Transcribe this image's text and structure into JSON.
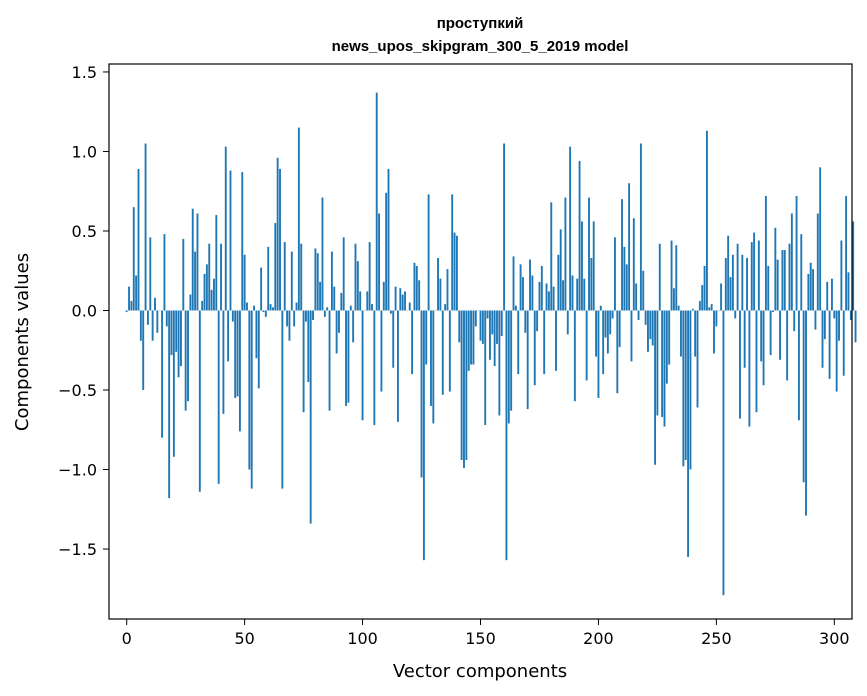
{
  "chart_data": {
    "type": "bar",
    "title": "проступкий",
    "subtitle": "news_upos_skipgram_300_5_2019 model",
    "xlabel": "Vector components",
    "ylabel": "Components values",
    "xlim": [
      -7.5,
      307.5
    ],
    "ylim": [
      -1.94,
      1.55
    ],
    "x_ticks": [
      0,
      50,
      100,
      150,
      200,
      250,
      300
    ],
    "x_tick_labels": [
      "0",
      "50",
      "100",
      "150",
      "200",
      "250",
      "300"
    ],
    "y_ticks": [
      -1.5,
      -1.0,
      -0.5,
      0.0,
      0.5,
      1.0,
      1.5
    ],
    "y_tick_labels": [
      "−1.5",
      "−1.0",
      "−0.5",
      "0.0",
      "0.5",
      "1.0",
      "1.5"
    ],
    "grid": false,
    "bar_color": "#1f77b4",
    "values": [
      -0.01,
      0.15,
      0.06,
      0.65,
      0.22,
      0.89,
      -0.19,
      -0.5,
      1.05,
      -0.09,
      0.46,
      -0.19,
      0.08,
      -0.14,
      0.0,
      -0.8,
      0.48,
      -0.1,
      -1.18,
      -0.28,
      -0.92,
      -0.26,
      -0.42,
      -0.35,
      0.45,
      -0.63,
      -0.57,
      0.1,
      0.64,
      0.37,
      0.61,
      -1.14,
      0.06,
      0.23,
      0.29,
      0.42,
      0.13,
      0.2,
      0.6,
      -1.09,
      0.42,
      -0.65,
      1.03,
      -0.32,
      0.88,
      -0.07,
      -0.55,
      -0.54,
      -0.76,
      0.87,
      0.35,
      0.05,
      -1.0,
      -1.12,
      0.03,
      -0.3,
      -0.49,
      0.27,
      -0.01,
      -0.04,
      0.4,
      0.04,
      0.02,
      0.55,
      0.96,
      0.89,
      -1.12,
      0.43,
      -0.1,
      -0.19,
      0.37,
      -0.1,
      0.05,
      1.15,
      0.42,
      -0.64,
      -0.07,
      -0.45,
      -1.34,
      -0.06,
      0.39,
      0.36,
      0.18,
      0.71,
      -0.04,
      0.02,
      -0.63,
      0.37,
      0.15,
      -0.27,
      -0.14,
      0.11,
      0.46,
      -0.6,
      -0.58,
      0.03,
      -0.2,
      0.42,
      0.31,
      0.12,
      -0.69,
      0.0,
      0.12,
      0.43,
      0.04,
      -0.72,
      1.37,
      0.61,
      -0.51,
      0.18,
      0.74,
      0.89,
      -0.02,
      -0.36,
      0.15,
      -0.7,
      0.14,
      0.1,
      0.12,
      0.0,
      0.05,
      -0.4,
      0.3,
      0.28,
      0.19,
      -1.05,
      -1.57,
      -0.34,
      0.73,
      -0.6,
      -0.71,
      0.0,
      0.33,
      0.2,
      -0.53,
      0.04,
      0.26,
      -0.51,
      0.73,
      0.49,
      0.47,
      -0.2,
      -0.94,
      -0.99,
      -0.94,
      -0.38,
      -0.34,
      -0.34,
      -0.1,
      0.0,
      -0.19,
      -0.21,
      -0.72,
      -0.05,
      -0.31,
      -0.15,
      -0.35,
      -0.21,
      -0.66,
      -0.16,
      1.05,
      -1.57,
      -0.71,
      -0.63,
      0.34,
      0.03,
      -0.4,
      0.29,
      0.21,
      -0.14,
      -0.62,
      0.32,
      0.22,
      -0.47,
      -0.13,
      0.18,
      0.28,
      -0.4,
      0.17,
      0.12,
      0.68,
      0.15,
      -0.38,
      0.35,
      0.51,
      0.19,
      0.71,
      -0.15,
      1.03,
      0.22,
      -0.57,
      0.2,
      0.94,
      0.56,
      0.2,
      -0.44,
      0.71,
      0.33,
      0.56,
      -0.29,
      -0.55,
      0.03,
      -0.4,
      -0.17,
      -0.27,
      -0.15,
      -0.05,
      0.46,
      -0.52,
      -0.23,
      0.7,
      0.4,
      0.29,
      0.8,
      -0.32,
      0.58,
      0.17,
      -0.06,
      1.05,
      0.25,
      -0.09,
      -0.26,
      -0.18,
      -0.22,
      -0.97,
      -0.66,
      0.42,
      -0.67,
      -0.73,
      -0.46,
      -0.34,
      0.44,
      0.14,
      0.41,
      0.03,
      -0.29,
      -0.98,
      -0.94,
      -1.55,
      -1.0,
      0.01,
      -0.29,
      -0.61,
      0.06,
      0.16,
      0.28,
      1.13,
      0.02,
      0.04,
      -0.27,
      -0.1,
      0.0,
      0.17,
      -1.79,
      0.33,
      0.47,
      0.21,
      0.35,
      -0.05,
      0.42,
      -0.68,
      0.35,
      -0.36,
      0.33,
      -0.73,
      0.43,
      0.49,
      -0.64,
      0.44,
      -0.32,
      -0.47,
      0.72,
      0.28,
      -0.28,
      -0.01,
      0.52,
      0.32,
      -0.31,
      0.38,
      0.38,
      -0.44,
      0.42,
      0.61,
      -0.13,
      0.72,
      -0.69,
      0.48,
      -1.08,
      -1.29,
      0.23,
      0.3,
      0.26,
      -0.12,
      0.61,
      0.9,
      -0.36,
      -0.18,
      0.18,
      -0.43,
      0.2,
      -0.05,
      -0.51,
      -0.19,
      0.44,
      -0.41,
      0.72,
      0.24,
      -0.06,
      0.56,
      -0.2
    ]
  }
}
